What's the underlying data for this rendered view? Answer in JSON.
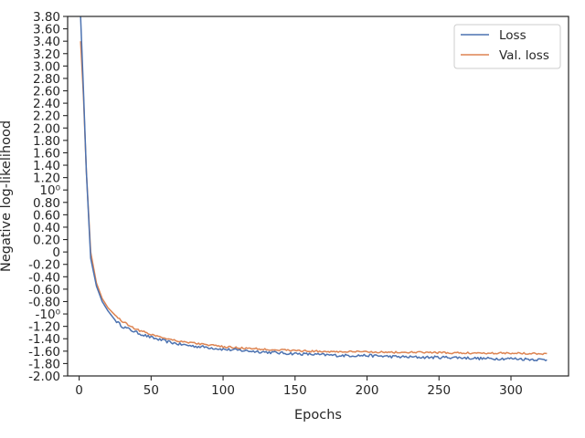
{
  "chart_data": {
    "type": "line",
    "xlabel": "Epochs",
    "ylabel": "Negative log-likelihood",
    "xlim": [
      -8,
      340
    ],
    "ylim": [
      -2.0,
      3.8
    ],
    "x_ticks": [
      0,
      50,
      100,
      150,
      200,
      250,
      300
    ],
    "x_tick_labels": [
      "0",
      "50",
      "100",
      "150",
      "200",
      "250",
      "300"
    ],
    "y_ticks": [
      -2.0,
      -1.8,
      -1.6,
      -1.4,
      -1.2,
      -1.0,
      -0.8,
      -0.6,
      -0.4,
      -0.2,
      0,
      0.2,
      0.4,
      0.6,
      0.8,
      1.0,
      1.2,
      1.4,
      1.6,
      1.8,
      2.0,
      2.2,
      2.4,
      2.6,
      2.8,
      3.0,
      3.2,
      3.4,
      3.6,
      3.8
    ],
    "y_tick_labels": [
      "-2.00",
      "-1.80",
      "-1.60",
      "-1.40",
      "-1.20",
      "-10⁰",
      "-0.80",
      "-0.60",
      "-0.40",
      "-0.20",
      "0",
      "0.20",
      "0.40",
      "0.60",
      "0.80",
      "10⁰",
      "1.20",
      "1.40",
      "1.60",
      "1.80",
      "2.00",
      "2.20",
      "2.40",
      "2.60",
      "2.80",
      "3.00",
      "3.20",
      "3.40",
      "3.60",
      "3.80"
    ],
    "legend_position": "top-right",
    "grid": false,
    "series": [
      {
        "name": "Loss",
        "color": "#4c72b0",
        "x": [
          1,
          3,
          5,
          8,
          12,
          16,
          20,
          25,
          30,
          40,
          50,
          60,
          70,
          80,
          90,
          100,
          120,
          140,
          160,
          180,
          200,
          220,
          240,
          260,
          280,
          300,
          325
        ],
        "y": [
          3.8,
          2.6,
          1.3,
          -0.1,
          -0.55,
          -0.8,
          -0.95,
          -1.1,
          -1.2,
          -1.3,
          -1.38,
          -1.44,
          -1.49,
          -1.52,
          -1.54,
          -1.57,
          -1.6,
          -1.63,
          -1.65,
          -1.67,
          -1.67,
          -1.69,
          -1.7,
          -1.7,
          -1.72,
          -1.72,
          -1.74
        ]
      },
      {
        "name": "Val. loss",
        "color": "#dd8452",
        "x": [
          1,
          3,
          5,
          8,
          12,
          16,
          20,
          25,
          30,
          40,
          50,
          60,
          70,
          80,
          90,
          100,
          120,
          140,
          160,
          180,
          200,
          220,
          240,
          260,
          280,
          300,
          325
        ],
        "y": [
          3.4,
          2.5,
          1.3,
          0.0,
          -0.5,
          -0.75,
          -0.9,
          -1.02,
          -1.12,
          -1.25,
          -1.33,
          -1.39,
          -1.44,
          -1.47,
          -1.5,
          -1.53,
          -1.56,
          -1.58,
          -1.6,
          -1.61,
          -1.61,
          -1.62,
          -1.62,
          -1.63,
          -1.63,
          -1.63,
          -1.64
        ]
      }
    ]
  }
}
